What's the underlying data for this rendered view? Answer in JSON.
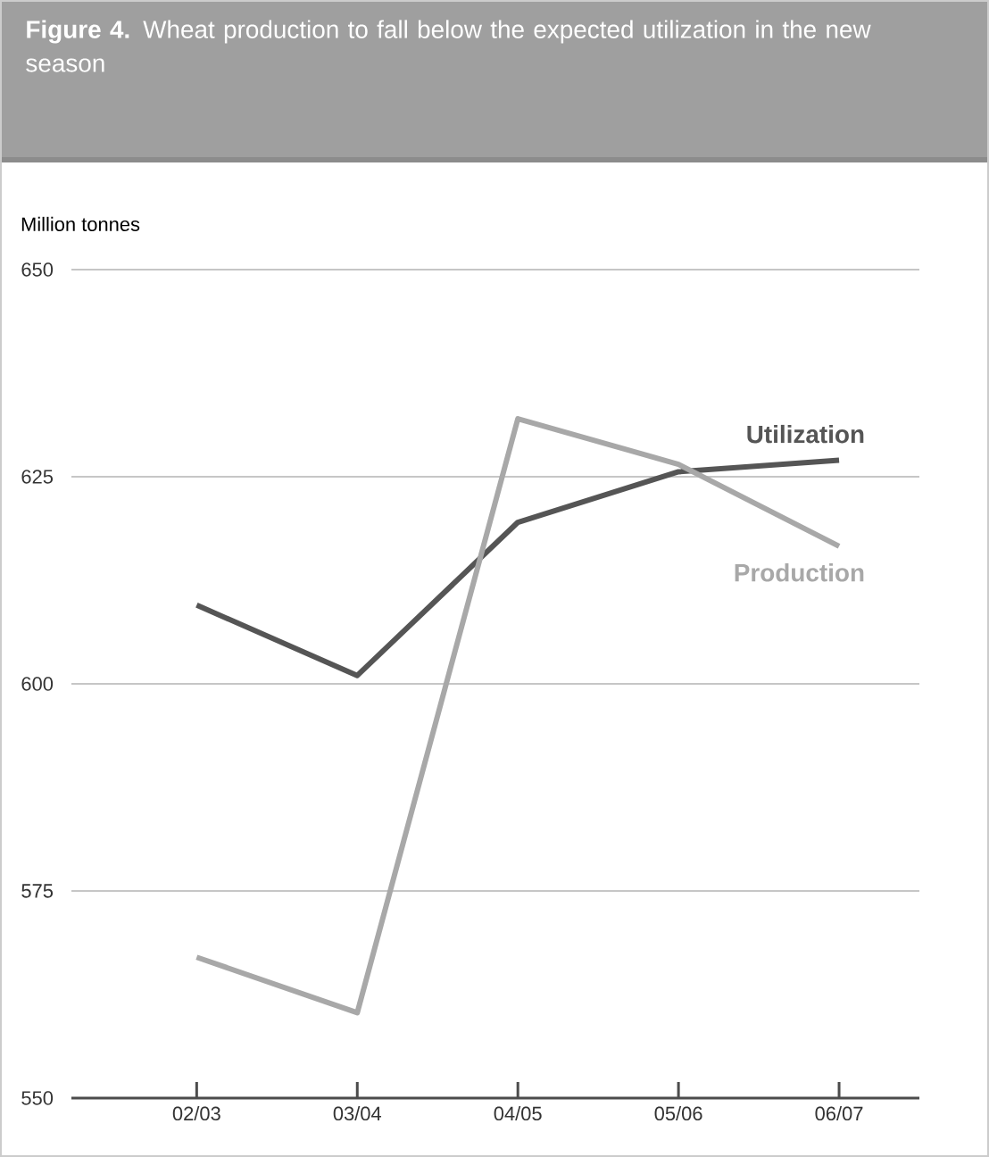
{
  "chart_data": {
    "type": "line",
    "title": "**Figure 4.** Wheat production to fall below the expected utilization in the new season",
    "ylabel": "Million tonnes",
    "categories": [
      "02/03",
      "03/04",
      "04/05",
      "05/06",
      "06/07"
    ],
    "series": [
      {
        "name": "Utilization",
        "color": "#555555",
        "values": [
          609.5,
          601,
          619.5,
          625.6,
          627
        ]
      },
      {
        "name": "Production",
        "color": "#a8a8a8",
        "values": [
          567,
          560.3,
          632,
          626.5,
          616.6
        ]
      }
    ],
    "ylim": [
      550,
      650
    ],
    "yticks": [
      550,
      575,
      600,
      625,
      650
    ],
    "grid": "y",
    "marker": "none",
    "line_style": "solid"
  }
}
